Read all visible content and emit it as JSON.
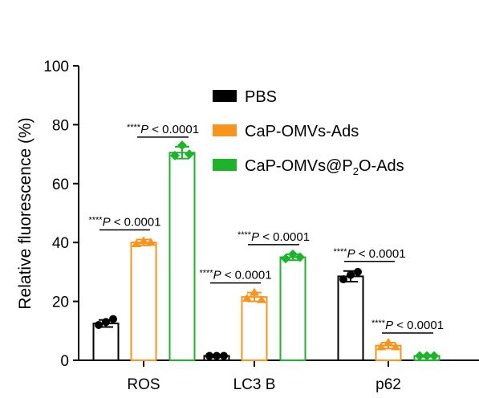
{
  "chart_data": {
    "type": "bar",
    "ylabel": "Relative fluorescence (%)",
    "ylim": [
      0,
      100
    ],
    "yticks": [
      "0",
      "20",
      "40",
      "60",
      "80",
      "100"
    ],
    "categories": [
      "ROS",
      "LC3 B",
      "p62"
    ],
    "series": [
      {
        "name": "PBS",
        "color": "#000000",
        "values": [
          12.5,
          1.5,
          28.5
        ],
        "errors": [
          1.2,
          0.3,
          1.8
        ],
        "points": [
          [
            12,
            13,
            14
          ],
          [
            1.5,
            1.5,
            1.5
          ],
          [
            27.5,
            29,
            30
          ]
        ]
      },
      {
        "name": "CaP-OMVs-Ads",
        "color": "#F7941D",
        "values": [
          40,
          21.5,
          5
        ],
        "errors": [
          1.0,
          1.5,
          1.0
        ],
        "points": [
          [
            39.5,
            40.5,
            40
          ],
          [
            21,
            23,
            20.5
          ],
          [
            4.5,
            6,
            4.5
          ]
        ]
      },
      {
        "name": "CaP-OMVs@P2O-Ads",
        "legend_pre": "CaP-OMVs@P",
        "legend_sub": "2",
        "legend_post": "O-Ads",
        "color": "#1DB32A",
        "values": [
          70.5,
          35,
          1.5
        ],
        "errors": [
          2.0,
          1.0,
          0.3
        ],
        "points": [
          [
            69.5,
            73,
            70
          ],
          [
            34.5,
            36,
            35
          ],
          [
            1.5,
            1.5,
            1.5
          ]
        ]
      }
    ],
    "annotations": [
      {
        "stars": "****",
        "p": "P",
        "text": "< 0.0001",
        "category": 0,
        "from": 0,
        "to": 1
      },
      {
        "stars": "****",
        "p": "P",
        "text": "< 0.0001",
        "category": 0,
        "from": 1,
        "to": 2
      },
      {
        "stars": "****",
        "p": "P",
        "text": "< 0.0001",
        "category": 1,
        "from": 0,
        "to": 1
      },
      {
        "stars": "****",
        "p": "P",
        "text": "< 0.0001",
        "category": 1,
        "from": 1,
        "to": 2
      },
      {
        "stars": "****",
        "p": "P",
        "text": "< 0.0001",
        "category": 2,
        "from": 0,
        "to": 1
      },
      {
        "stars": "****",
        "p": "P",
        "text": "< 0.0001",
        "category": 2,
        "from": 1,
        "to": 2
      }
    ]
  }
}
